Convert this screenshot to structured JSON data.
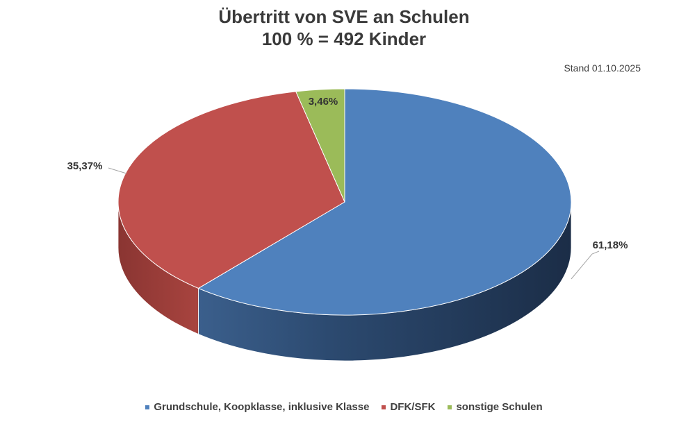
{
  "title_line1": "Übertritt von SVE an Schulen",
  "title_line2": "100 % = 492 Kinder",
  "stand": "Stand 01.10.2025",
  "chart_data": {
    "type": "pie",
    "subtype": "3d",
    "title": "Übertritt von SVE an Schulen\n100 % = 492 Kinder",
    "total": 492,
    "legend_position": "bottom",
    "slices": [
      {
        "name": "Grundschule, Koopklasse, inklusive Klasse",
        "value": 61.18,
        "label": "61,18%",
        "color": "#4f81bd"
      },
      {
        "name": "DFK/SFK",
        "value": 35.37,
        "label": "35,37%",
        "color": "#c0504d"
      },
      {
        "name": "sonstige Schulen",
        "value": 3.46,
        "label": "3,46%",
        "color": "#9bbb59"
      }
    ]
  }
}
